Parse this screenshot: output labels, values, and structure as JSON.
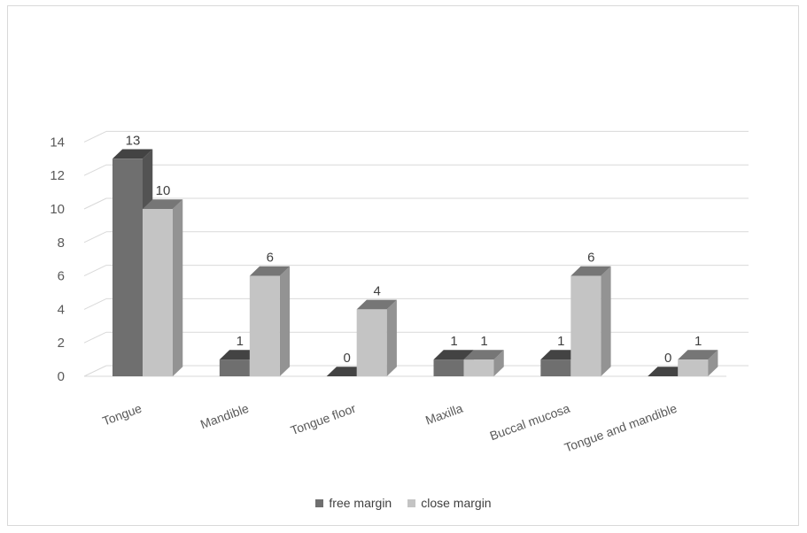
{
  "chart_data": {
    "type": "bar",
    "title": "",
    "xlabel": "",
    "ylabel": "",
    "categories": [
      "Tongue",
      "Mandible",
      "Tongue floor",
      "Maxilla",
      "Buccal mucosa",
      "Tongue and mandible"
    ],
    "series": [
      {
        "name": "free margin",
        "values": [
          13,
          1,
          0,
          1,
          1,
          0
        ],
        "color": "#6f6f6f"
      },
      {
        "name": "close margin",
        "values": [
          10,
          6,
          4,
          1,
          6,
          1
        ],
        "color": "#c4c4c4"
      }
    ],
    "ylim": [
      0,
      14
    ],
    "yticks": [
      "0",
      "2",
      "4",
      "6",
      "8",
      "10",
      "12",
      "14"
    ],
    "grid": true,
    "legend_position": "bottom",
    "data_labels": true,
    "style": "3d-clustered-column"
  },
  "legend": {
    "items": [
      {
        "label": "free margin",
        "color": "#6f6f6f"
      },
      {
        "label": "close margin",
        "color": "#c4c4c4"
      }
    ]
  }
}
